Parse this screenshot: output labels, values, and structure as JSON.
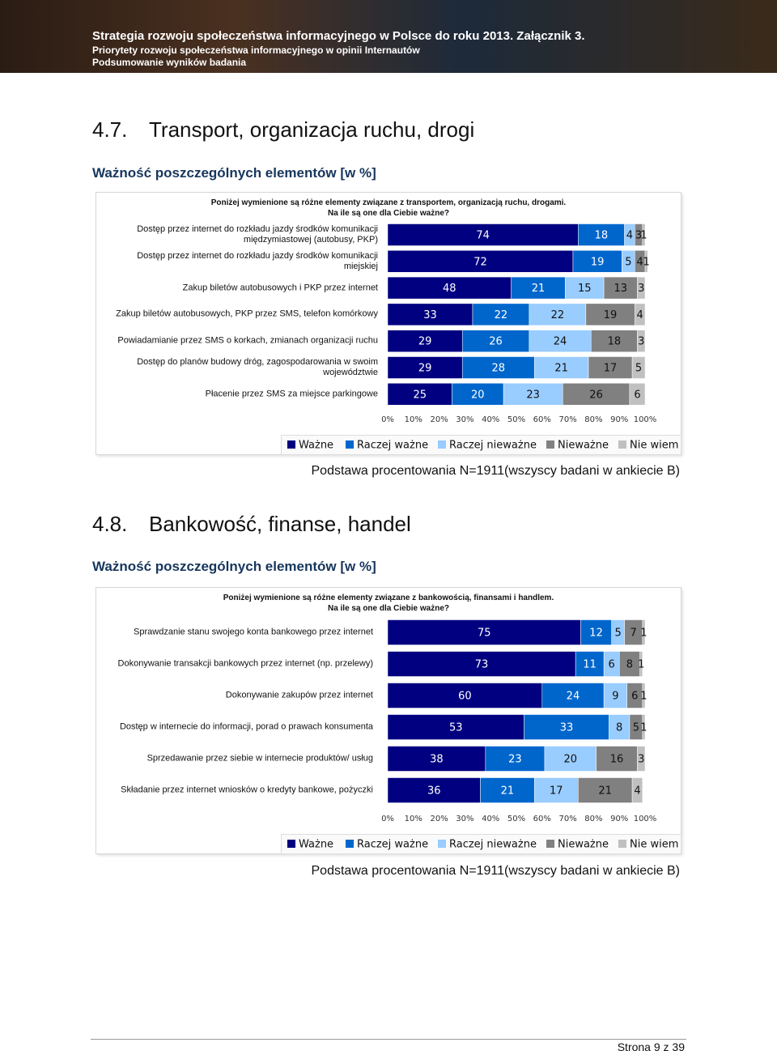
{
  "header": {
    "line1": "Strategia rozwoju społeczeństwa informacyjnego w Polsce do roku 2013. Załącznik 3.",
    "line2": "Priorytety rozwoju społeczeństwa informacyjnego w opinii Internautów",
    "line3": "Podsumowanie wyników badania"
  },
  "sections": [
    {
      "number": "4.7.",
      "title": "Transport, organizacja ruchu, drogi",
      "subtitle": "Ważność poszczególnych elementów [w %]"
    },
    {
      "number": "4.8.",
      "title": "Bankowość, finanse, handel",
      "subtitle": "Ważność poszczególnych elementów [w %]"
    }
  ],
  "chart_data": [
    {
      "type": "bar",
      "orientation": "horizontal",
      "stacked": true,
      "title": "Poniżej  wymienione są różne elementy związane z  transportem, organizacją ruchu, drogami.",
      "subtitle": "Na ile są one dla Ciebie ważne?",
      "note": "Podstawa procentowania N=1911(wszyscy badani w ankiecie B)",
      "categories": [
        "Dostęp przez internet do rozkładu jazdy środków komunikacji międzymiastowej (autobusy, PKP)",
        "Dostęp przez internet do rozkładu jazdy środków komunikacji miejskiej",
        "Zakup biletów autobusowych i PKP przez internet",
        "Zakup biletów autobusowych, PKP przez SMS, telefon komórkowy",
        "Powiadamianie przez SMS o korkach, zmianach organizacji ruchu",
        "Dostęp do planów budowy dróg, zagospodarowania w swoim województwie",
        "Płacenie przez SMS za miejsce parkingowe"
      ],
      "series": [
        {
          "name": "Ważne",
          "color": "#000080",
          "values": [
            74,
            72,
            48,
            33,
            29,
            29,
            25
          ]
        },
        {
          "name": "Raczej ważne",
          "color": "#0066cc",
          "values": [
            18,
            19,
            21,
            22,
            26,
            28,
            20
          ]
        },
        {
          "name": "Raczej nieważne",
          "color": "#99ccff",
          "values": [
            4,
            5,
            15,
            22,
            24,
            21,
            23
          ]
        },
        {
          "name": "Nieważne",
          "color": "#808080",
          "values": [
            3,
            4,
            13,
            19,
            18,
            17,
            26
          ]
        },
        {
          "name": "Nie wiem",
          "color": "#c0c0c0",
          "values": [
            1,
            1,
            3,
            4,
            3,
            5,
            6
          ]
        }
      ],
      "xlim": [
        0,
        100
      ],
      "xticks": [
        {
          "value": 0,
          "label": "0%"
        },
        {
          "value": 10,
          "label": "10%"
        },
        {
          "value": 20,
          "label": "20%"
        },
        {
          "value": 30,
          "label": "30%"
        },
        {
          "value": 40,
          "label": "40%"
        },
        {
          "value": 50,
          "label": "50%"
        },
        {
          "value": 60,
          "label": "60%"
        },
        {
          "value": 70,
          "label": "70%"
        },
        {
          "value": 80,
          "label": "80%"
        },
        {
          "value": 90,
          "label": "90%"
        },
        {
          "value": 100,
          "label": "100%"
        }
      ]
    },
    {
      "type": "bar",
      "orientation": "horizontal",
      "stacked": true,
      "title": "Poniżej  wymienione są różne elementy związane z  bankowością, finansami i handlem.",
      "subtitle": "Na ile są one dla Ciebie ważne?",
      "note": "Podstawa procentowania N=1911(wszyscy badani w ankiecie B)",
      "categories": [
        "Sprawdzanie stanu swojego konta bankowego przez internet",
        "Dokonywanie transakcji bankowych przez internet (np. przelewy)",
        "Dokonywanie zakupów przez internet",
        "Dostęp w internecie do informacji, porad o prawach konsumenta",
        "Sprzedawanie przez siebie w internecie produktów/ usług",
        "Składanie przez internet wniosków o kredyty bankowe, pożyczki"
      ],
      "series": [
        {
          "name": "Ważne",
          "color": "#000080",
          "values": [
            75,
            73,
            60,
            53,
            38,
            36
          ]
        },
        {
          "name": "Raczej ważne",
          "color": "#0066cc",
          "values": [
            12,
            11,
            24,
            33,
            23,
            21
          ]
        },
        {
          "name": "Raczej nieważne",
          "color": "#99ccff",
          "values": [
            5,
            6,
            9,
            8,
            20,
            17
          ]
        },
        {
          "name": "Nieważne",
          "color": "#808080",
          "values": [
            7,
            8,
            6,
            5,
            16,
            21
          ]
        },
        {
          "name": "Nie wiem",
          "color": "#c0c0c0",
          "values": [
            1,
            1,
            1,
            1,
            3,
            4
          ]
        }
      ],
      "xlim": [
        0,
        100
      ],
      "xticks": [
        {
          "value": 0,
          "label": "0%"
        },
        {
          "value": 10,
          "label": "10%"
        },
        {
          "value": 20,
          "label": "20%"
        },
        {
          "value": 30,
          "label": "30%"
        },
        {
          "value": 40,
          "label": "40%"
        },
        {
          "value": 50,
          "label": "50%"
        },
        {
          "value": 60,
          "label": "60%"
        },
        {
          "value": 70,
          "label": "70%"
        },
        {
          "value": 80,
          "label": "80%"
        },
        {
          "value": 90,
          "label": "90%"
        },
        {
          "value": 100,
          "label": "100%"
        }
      ]
    }
  ],
  "footer": {
    "page": "Strona 9 z 39"
  }
}
